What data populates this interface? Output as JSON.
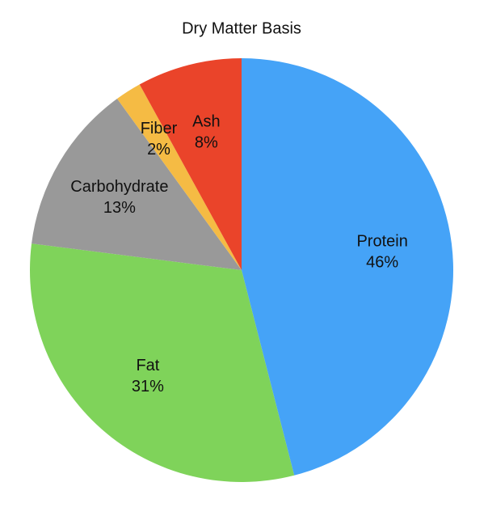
{
  "chart_data": {
    "type": "pie",
    "title": "Dry Matter Basis",
    "categories": [
      "Protein",
      "Fat",
      "Carbohydrate",
      "Fiber",
      "Ash"
    ],
    "values": [
      46,
      31,
      13,
      2,
      8
    ],
    "value_labels": [
      "46%",
      "31%",
      "13%",
      "2%",
      "8%"
    ],
    "colors": [
      "#45a3f7",
      "#7fd35a",
      "#999999",
      "#f5bb44",
      "#ea442a"
    ]
  }
}
